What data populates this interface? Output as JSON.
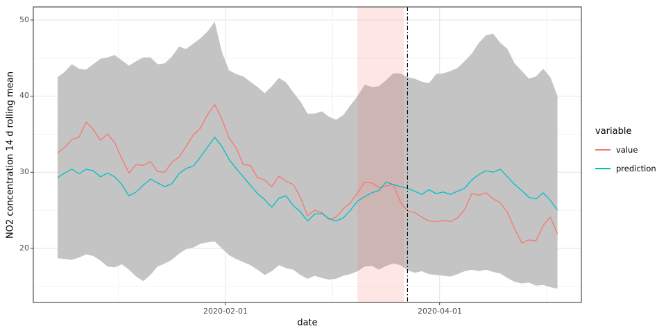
{
  "chart_data": {
    "type": "line",
    "title": "",
    "xlabel": "date",
    "ylabel": "NO2 concentration 14 d rolling mean",
    "x_tick_labels": [
      "2020-02-01",
      "2020-04-01"
    ],
    "y_tick_labels": [
      "20",
      "30",
      "40",
      "50"
    ],
    "y_tick_values": [
      20,
      30,
      40,
      50
    ],
    "y_minor_values": [
      15,
      25,
      35,
      45
    ],
    "ylim": [
      13,
      52
    ],
    "grid": true,
    "legend_position": "right",
    "start_date": "2019-12-16",
    "end_date": "2020-05-04",
    "sample_interval_days": 2,
    "series": [
      {
        "name": "value",
        "color": "#F8766D",
        "values": [
          32.5,
          33.3,
          34.3,
          34.6,
          36.6,
          35.6,
          34.2,
          35.0,
          33.9,
          31.8,
          29.9,
          31.0,
          30.9,
          31.4,
          30.1,
          30.0,
          31.3,
          32.0,
          33.4,
          34.9,
          35.8,
          37.6,
          38.9,
          37.0,
          34.5,
          33.2,
          31.0,
          30.9,
          29.3,
          29.0,
          28.1,
          29.5,
          28.8,
          28.4,
          26.7,
          24.3,
          25.0,
          24.7,
          23.8,
          24.1,
          25.2,
          26.0,
          27.3,
          28.7,
          28.6,
          28.0,
          28.2,
          28.4,
          26.1,
          24.9,
          24.7,
          24.1,
          23.6,
          23.5,
          23.7,
          23.5,
          24.0,
          25.1,
          27.2,
          27.0,
          27.3,
          26.5,
          26.0,
          24.7,
          22.6,
          20.7,
          21.1,
          21.0,
          23.0,
          24.1,
          21.9
        ]
      },
      {
        "name": "prediction",
        "color": "#00BFC4",
        "values": [
          29.3,
          29.9,
          30.4,
          29.8,
          30.4,
          30.2,
          29.4,
          29.9,
          29.4,
          28.4,
          26.9,
          27.4,
          28.3,
          29.1,
          28.6,
          28.1,
          28.5,
          29.8,
          30.5,
          30.8,
          32.0,
          33.3,
          34.6,
          33.4,
          31.7,
          30.5,
          29.4,
          28.3,
          27.2,
          26.4,
          25.4,
          26.6,
          26.9,
          25.6,
          24.8,
          23.6,
          24.5,
          24.6,
          23.9,
          23.6,
          24.0,
          25.0,
          26.2,
          26.8,
          27.3,
          27.6,
          28.7,
          28.4,
          28.1,
          27.9,
          27.5,
          27.1,
          27.7,
          27.2,
          27.4,
          27.1,
          27.5,
          27.9,
          29.0,
          29.7,
          30.2,
          30.0,
          30.4,
          29.4,
          28.4,
          27.6,
          26.7,
          26.5,
          27.3,
          26.3,
          25.0
        ]
      }
    ],
    "ribbon": {
      "name": "uncertainty-band",
      "color": "#C4C4C4",
      "upper": [
        42.5,
        43.2,
        44.2,
        43.6,
        43.5,
        44.2,
        44.9,
        45.1,
        45.4,
        44.7,
        44.0,
        44.6,
        45.1,
        45.1,
        44.2,
        44.3,
        45.2,
        46.5,
        46.2,
        46.9,
        47.6,
        48.5,
        49.8,
        45.8,
        43.4,
        42.9,
        42.6,
        41.9,
        41.2,
        40.4,
        41.3,
        42.4,
        41.8,
        40.5,
        39.3,
        37.7,
        37.7,
        38.0,
        37.3,
        36.9,
        37.5,
        38.8,
        40.0,
        41.5,
        41.2,
        41.3,
        42.1,
        43.0,
        43.0,
        42.5,
        42.3,
        41.9,
        41.7,
        42.9,
        43.0,
        43.3,
        43.7,
        44.6,
        45.6,
        47.0,
        48.0,
        48.2,
        47.0,
        46.2,
        44.3,
        43.3,
        42.3,
        42.6,
        43.6,
        42.5,
        40.0
      ],
      "lower": [
        18.7,
        18.6,
        18.5,
        18.8,
        19.2,
        19.0,
        18.4,
        17.6,
        17.5,
        17.9,
        17.2,
        16.3,
        15.7,
        16.5,
        17.6,
        18.0,
        18.5,
        19.3,
        19.9,
        20.1,
        20.6,
        20.8,
        20.9,
        20.0,
        19.1,
        18.6,
        18.2,
        17.8,
        17.2,
        16.5,
        17.0,
        17.8,
        17.4,
        17.2,
        16.5,
        16.0,
        16.4,
        16.1,
        15.9,
        16.0,
        16.4,
        16.6,
        17.0,
        17.6,
        17.7,
        17.2,
        17.7,
        18.0,
        17.8,
        17.1,
        16.8,
        17.0,
        16.6,
        16.5,
        16.4,
        16.3,
        16.6,
        17.0,
        17.2,
        17.0,
        17.2,
        16.9,
        16.7,
        16.1,
        15.6,
        15.4,
        15.5,
        15.1,
        15.2,
        14.9,
        14.7
      ]
    },
    "highlight_band": {
      "start": "2020-03-09",
      "end": "2020-03-22",
      "color": "rgba(248,118,109,0.18)"
    },
    "vline": {
      "date": "2020-03-23",
      "style": "dotdash",
      "color": "#000000"
    },
    "legend": {
      "title": "variable",
      "items": [
        {
          "label": "value",
          "color": "#F8766D"
        },
        {
          "label": "prediction",
          "color": "#00BFC4"
        }
      ]
    },
    "panel": {
      "border_color": "#4d4d4d",
      "grid_major_color": "#e4e4e4",
      "grid_minor_color": "#f3f3f3"
    }
  }
}
